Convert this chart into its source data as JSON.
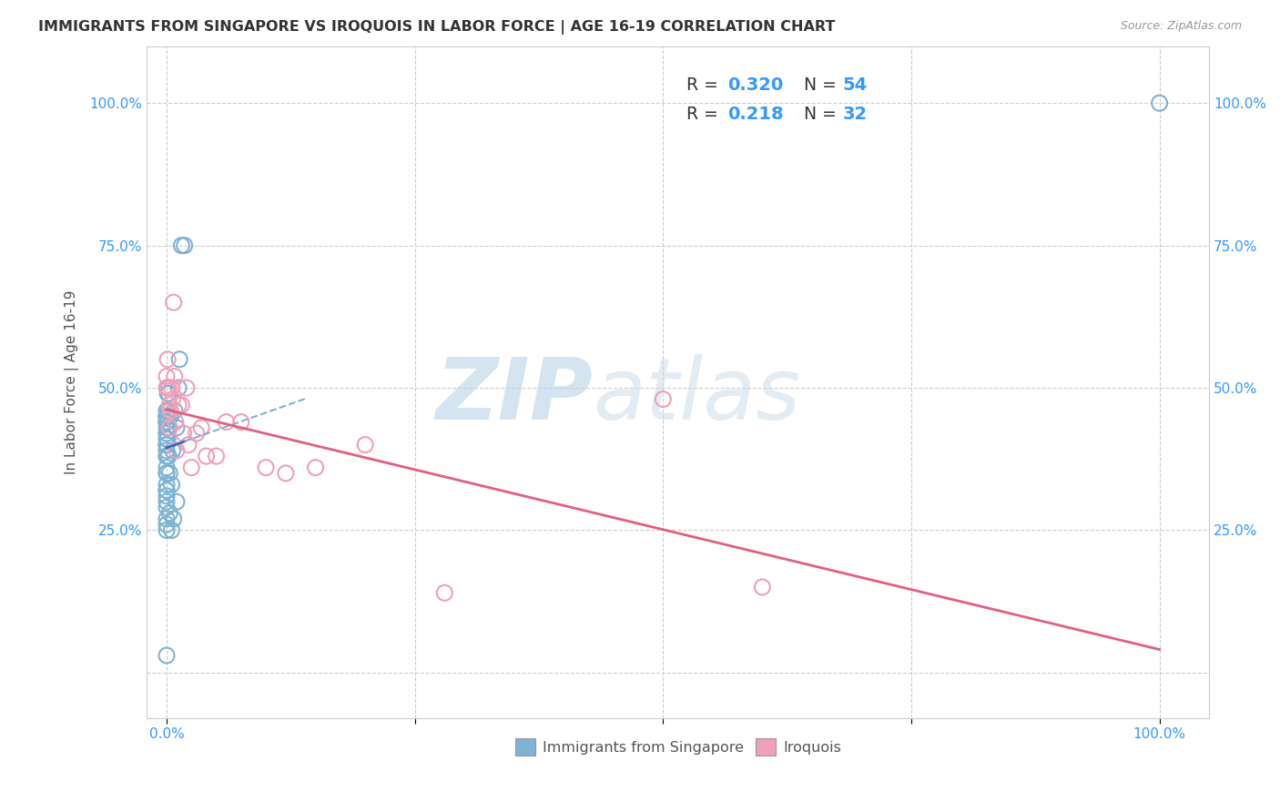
{
  "title": "IMMIGRANTS FROM SINGAPORE VS IROQUOIS IN LABOR FORCE | AGE 16-19 CORRELATION CHART",
  "source": "Source: ZipAtlas.com",
  "ylabel": "In Labor Force | Age 16-19",
  "r_singapore": "0.320",
  "n_singapore": "54",
  "r_iroquois": "0.218",
  "n_iroquois": "32",
  "color_singapore": "#7fb3d3",
  "color_iroquois": "#f0a0b8",
  "trendline_singapore": "#3366bb",
  "trendline_iroquois": "#e06080",
  "singapore_x": [
    0.0,
    0.0,
    0.0,
    0.0,
    0.0,
    0.0,
    0.0,
    0.0,
    0.0,
    0.0,
    0.0,
    0.0,
    0.0,
    0.0,
    0.0,
    0.0,
    0.0,
    0.0,
    0.0,
    0.0,
    0.0,
    0.0,
    0.0,
    0.0,
    0.0,
    0.0,
    0.0,
    0.0,
    0.0,
    0.0,
    0.001,
    0.001,
    0.001,
    0.001,
    0.001,
    0.001,
    0.002,
    0.002,
    0.002,
    0.003,
    0.003,
    0.004,
    0.005,
    0.005,
    0.006,
    0.007,
    0.008,
    0.01,
    0.01,
    0.012,
    0.013,
    0.015,
    0.018,
    1.0
  ],
  "singapore_y": [
    0.46,
    0.45,
    0.45,
    0.45,
    0.44,
    0.44,
    0.44,
    0.43,
    0.42,
    0.42,
    0.41,
    0.4,
    0.4,
    0.4,
    0.39,
    0.38,
    0.38,
    0.36,
    0.35,
    0.35,
    0.33,
    0.32,
    0.32,
    0.31,
    0.3,
    0.29,
    0.27,
    0.26,
    0.25,
    0.03,
    0.5,
    0.49,
    0.46,
    0.45,
    0.44,
    0.41,
    0.49,
    0.43,
    0.38,
    0.35,
    0.28,
    0.45,
    0.33,
    0.25,
    0.39,
    0.27,
    0.46,
    0.43,
    0.3,
    0.5,
    0.55,
    0.75,
    0.75,
    1.0
  ],
  "iroquois_x": [
    0.0,
    0.0,
    0.001,
    0.002,
    0.003,
    0.003,
    0.004,
    0.005,
    0.006,
    0.007,
    0.008,
    0.009,
    0.01,
    0.012,
    0.015,
    0.017,
    0.02,
    0.022,
    0.025,
    0.03,
    0.035,
    0.04,
    0.05,
    0.06,
    0.075,
    0.1,
    0.12,
    0.15,
    0.2,
    0.28,
    0.5,
    0.6
  ],
  "iroquois_y": [
    0.52,
    0.5,
    0.55,
    0.5,
    0.47,
    0.43,
    0.46,
    0.5,
    0.48,
    0.65,
    0.52,
    0.44,
    0.39,
    0.47,
    0.47,
    0.42,
    0.5,
    0.4,
    0.36,
    0.42,
    0.43,
    0.38,
    0.38,
    0.44,
    0.44,
    0.36,
    0.35,
    0.36,
    0.4,
    0.14,
    0.48,
    0.15
  ],
  "watermark_zip": "ZIP",
  "watermark_atlas": "atlas",
  "xlim": [
    -0.02,
    1.05
  ],
  "ylim": [
    -0.08,
    1.1
  ],
  "xticks": [
    0.0,
    0.25,
    0.5,
    0.75,
    1.0
  ],
  "yticks": [
    0.0,
    0.25,
    0.5,
    0.75,
    1.0
  ],
  "xticklabels_bottom": [
    "0.0%",
    "",
    "",
    "",
    "100.0%"
  ],
  "yticklabels_left": [
    "",
    "25.0%",
    "50.0%",
    "75.0%",
    "100.0%"
  ],
  "yticklabels_right": [
    "",
    "25.0%",
    "50.0%",
    "75.0%",
    "100.0%"
  ]
}
